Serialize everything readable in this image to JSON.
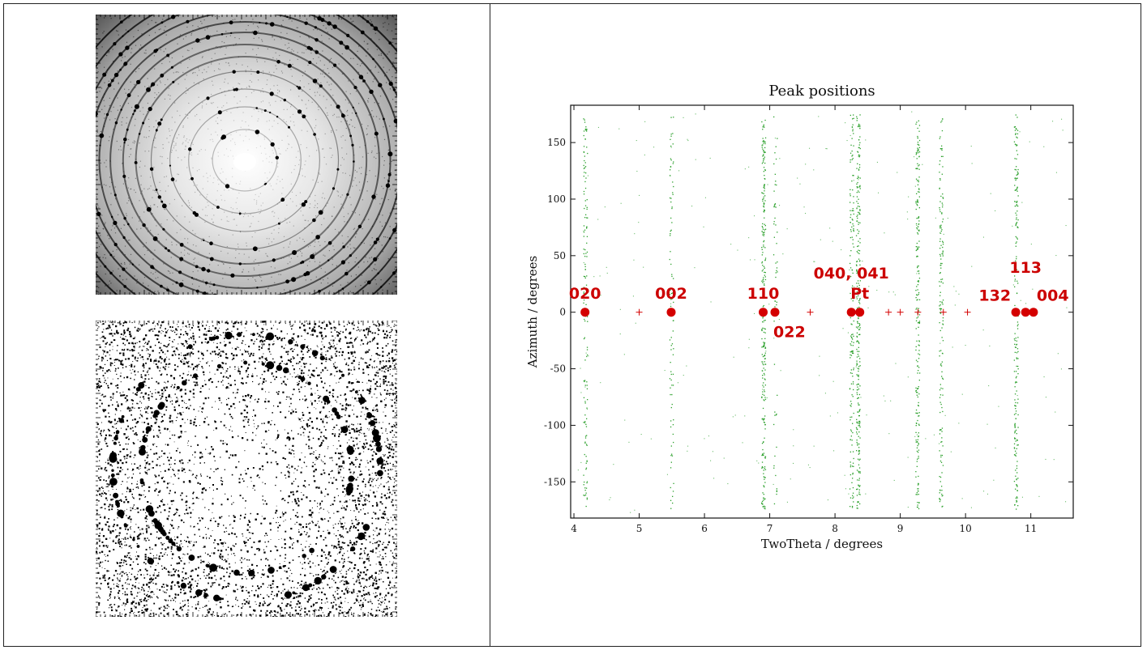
{
  "images": [
    {
      "name": "diffraction-image-raw",
      "description_icon": "powder-rings"
    },
    {
      "name": "diffraction-image-processed",
      "description_icon": "powder-rings-threshold"
    }
  ],
  "colors": {
    "points": "#2ca02c",
    "peaks": "#d40000",
    "axes": "#111111"
  },
  "chart_data": {
    "type": "scatter",
    "title": "Peak positions",
    "xlabel": "TwoTheta / degrees",
    "ylabel": "Azimuth / degrees",
    "xlim": [
      3.95,
      11.65
    ],
    "ylim": [
      -182,
      183
    ],
    "xticks": [
      4,
      5,
      6,
      7,
      8,
      9,
      10,
      11
    ],
    "yticks": [
      -150,
      -100,
      -50,
      0,
      50,
      100,
      150
    ],
    "grid": false,
    "data_lines": [
      {
        "x": 4.17,
        "density": 140
      },
      {
        "x": 5.49,
        "density": 90
      },
      {
        "x": 6.9,
        "density": 260
      },
      {
        "x": 7.08,
        "density": 60
      },
      {
        "x": 8.25,
        "density": 160
      },
      {
        "x": 8.35,
        "density": 260
      },
      {
        "x": 9.26,
        "density": 220
      },
      {
        "x": 9.62,
        "density": 160
      },
      {
        "x": 10.77,
        "density": 200
      }
    ],
    "identified_peaks": [
      {
        "x": 4.17,
        "y": 0
      },
      {
        "x": 5.49,
        "y": 0
      },
      {
        "x": 6.9,
        "y": 0
      },
      {
        "x": 7.08,
        "y": 0
      },
      {
        "x": 8.25,
        "y": 0
      },
      {
        "x": 8.38,
        "y": 0
      },
      {
        "x": 10.77,
        "y": 0
      },
      {
        "x": 10.92,
        "y": 0
      },
      {
        "x": 11.04,
        "y": 0
      }
    ],
    "unmatched_peaks": [
      {
        "x": 5.0,
        "y": 0
      },
      {
        "x": 7.62,
        "y": 0
      },
      {
        "x": 8.82,
        "y": 0
      },
      {
        "x": 9.0,
        "y": 0
      },
      {
        "x": 9.27,
        "y": 0
      },
      {
        "x": 9.66,
        "y": 0
      },
      {
        "x": 10.03,
        "y": 0
      }
    ],
    "annotations": [
      {
        "text": "020",
        "x": 4.17,
        "y": 12
      },
      {
        "text": "002",
        "x": 5.49,
        "y": 12
      },
      {
        "text": "110",
        "x": 6.9,
        "y": 12
      },
      {
        "text": "022",
        "x": 7.08,
        "y": -22
      },
      {
        "text": "040, 041",
        "x": 8.25,
        "y": 30
      },
      {
        "text": "Pt",
        "x": 8.38,
        "y": 12
      },
      {
        "text": "132",
        "x": 10.77,
        "y": 10
      },
      {
        "text": "113",
        "x": 10.92,
        "y": 35
      },
      {
        "text": "004",
        "x": 11.04,
        "y": 10
      }
    ]
  }
}
